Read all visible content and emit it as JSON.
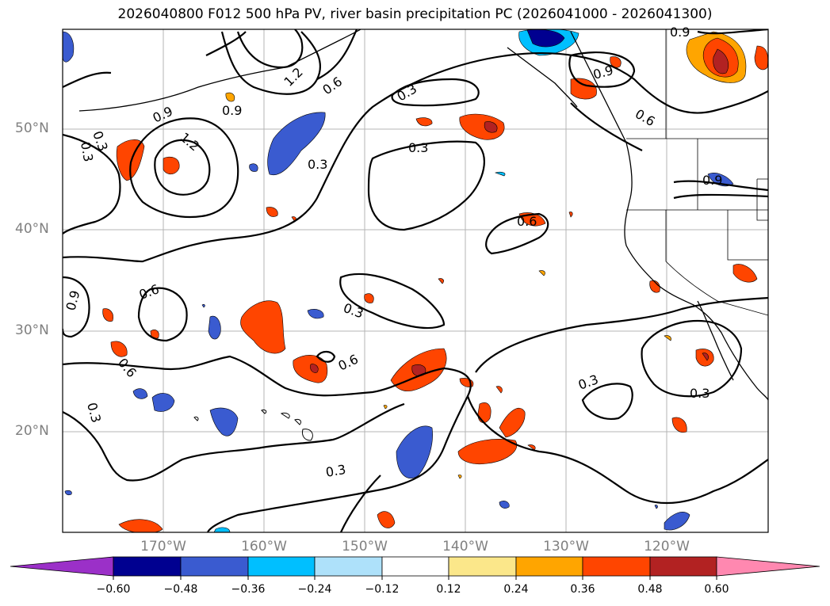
{
  "title": "2026040800 F012 500 hPa PV, river basin precipitation PC (2026041000 - 2026041300)",
  "map": {
    "lat_labels": [
      "50°N",
      "40°N",
      "30°N",
      "20°N"
    ],
    "lon_labels": [
      "170°W",
      "160°W",
      "150°W",
      "140°W",
      "130°W",
      "120°W"
    ],
    "contour_labels": [
      "0.3",
      "0.3",
      "0.3",
      "0.3",
      "0.3",
      "0.3",
      "0.3",
      "0.6",
      "0.6",
      "0.6",
      "0.6",
      "0.6",
      "0.6",
      "0.9",
      "0.9",
      "0.9",
      "0.9",
      "0.9",
      "1.2",
      "1.2",
      "0.9",
      "0.3"
    ]
  },
  "colorbar": {
    "ticks": [
      "−0.60",
      "−0.48",
      "−0.36",
      "−0.24",
      "−0.12",
      "0.12",
      "0.24",
      "0.36",
      "0.48",
      "0.60"
    ],
    "colors": {
      "under": "#9b30c8",
      "bins": [
        "#000090",
        "#3a5bd0",
        "#00bfff",
        "#aee1fa",
        "#ffffff",
        "#fbe78a",
        "#ffa500",
        "#ff4500",
        "#b22222"
      ],
      "over": "#ff88b0"
    }
  }
}
